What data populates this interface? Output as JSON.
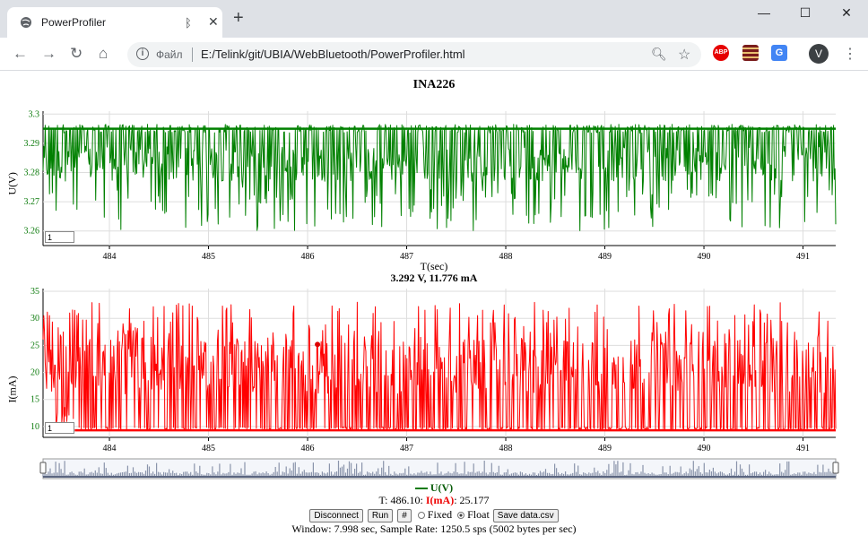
{
  "browser": {
    "tab_title": "PowerProfiler",
    "new_tab_symbol": "+",
    "url_scheme_label": "Файл",
    "url": "E:/Telink/git/UBIA/WebBluetooth/PowerProfiler.html",
    "avatar_letter": "V",
    "extensions": [
      {
        "name": "adblock-icon",
        "color": "#e60000",
        "text": "ABP"
      },
      {
        "name": "extension-stripes-icon",
        "color": "#7a1c1c",
        "text": ""
      },
      {
        "name": "translate-icon",
        "color": "#4285f4",
        "text": "G"
      }
    ]
  },
  "page": {
    "title": "INA226",
    "x_axis_label": "T(sec)",
    "readout": "3.292 V, 11.776 mA",
    "legend_label": "U(V)",
    "cursor": {
      "prefix": "T: 486.10: ",
      "label": "I(mA)",
      "suffix": ": 25.177"
    },
    "controls": {
      "disconnect": "Disconnect",
      "run": "Run",
      "hash": "#",
      "fixed": "Fixed",
      "float": "Float",
      "save": "Save data.csv"
    },
    "footer": "Window: 7.998 sec, Sample Rate: 1250.5 sps (5002 bytes per sec)"
  },
  "chart_data": [
    {
      "type": "line",
      "name": "voltage",
      "ylabel": "U(V)",
      "xlabel": "T(sec)",
      "xlim": [
        483.33,
        491.33
      ],
      "ylim": [
        3.255,
        3.301
      ],
      "x_ticks": [
        484,
        485,
        486,
        487,
        488,
        489,
        490,
        491
      ],
      "y_ticks": [
        3.26,
        3.27,
        3.28,
        3.29,
        3.3
      ],
      "y_tick_labels": [
        "3.26",
        "3.27",
        "3.28",
        "3.29",
        "3.3"
      ],
      "series_color": "#008000",
      "baseline": 3.295,
      "low_level": 3.283,
      "spike_min": 3.26,
      "series_box_value": "1"
    },
    {
      "type": "line",
      "name": "current",
      "ylabel": "I(mA)",
      "xlim": [
        483.33,
        491.33
      ],
      "ylim": [
        8,
        35.5
      ],
      "x_ticks": [
        484,
        485,
        486,
        487,
        488,
        489,
        490,
        491
      ],
      "y_ticks": [
        10,
        15,
        20,
        25,
        30,
        35
      ],
      "y_tick_labels": [
        "10",
        "15",
        "20",
        "25",
        "30",
        "35"
      ],
      "series_color": "#ff0000",
      "baseline": 9.3,
      "high_level": 22,
      "spike_max": 33,
      "series_box_value": "1"
    }
  ]
}
